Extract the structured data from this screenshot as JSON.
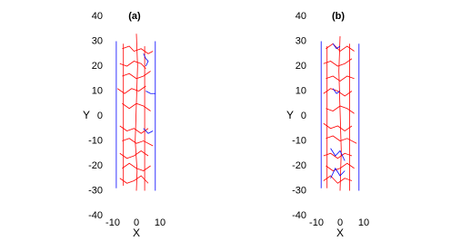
{
  "chart_data": [
    {
      "type": "line",
      "title": "(a)",
      "x_label": "X",
      "y_label": "Y",
      "xlim": [
        -10,
        10
      ],
      "ylim": [
        -40,
        40
      ],
      "xticks": [
        -10,
        0,
        10
      ],
      "yticks": [
        -40,
        -30,
        -20,
        -10,
        0,
        10,
        20,
        30,
        40
      ],
      "series": [
        {
          "color": "#0000ff",
          "x": [
            -8.5,
            -8.5
          ],
          "values": [
            -29,
            30
          ]
        },
        {
          "color": "#0000ff",
          "x": [
            8,
            8
          ],
          "values": [
            -30,
            30
          ]
        },
        {
          "color": "#ff0000",
          "x": [
            -5.5,
            -5.5
          ],
          "values": [
            -28,
            29
          ]
        },
        {
          "color": "#ff0000",
          "x": [
            3.5,
            3.5
          ],
          "values": [
            -30,
            28
          ]
        },
        {
          "color": "#ff0000",
          "x": [
            0,
            0.5,
            0,
            -0.5,
            0.3,
            0
          ],
          "values": [
            33,
            20,
            5,
            -10,
            -22,
            -30
          ]
        },
        {
          "color": "#ff0000",
          "x": [
            -6,
            -3,
            -1,
            2,
            5,
            7
          ],
          "values": [
            27,
            28,
            26,
            27,
            25,
            26
          ]
        },
        {
          "color": "#ff0000",
          "x": [
            -7,
            -4,
            -1,
            2,
            4
          ],
          "values": [
            21,
            20,
            22,
            21,
            19
          ]
        },
        {
          "color": "#ff0000",
          "x": [
            -6,
            -3,
            0,
            3,
            6
          ],
          "values": [
            16,
            17,
            15,
            16,
            18
          ]
        },
        {
          "color": "#ff0000",
          "x": [
            -8,
            -5,
            -2,
            1,
            4
          ],
          "values": [
            11,
            9,
            11,
            10,
            12
          ]
        },
        {
          "color": "#ff0000",
          "x": [
            -6,
            -3,
            0,
            3,
            6
          ],
          "values": [
            5,
            3,
            5,
            4,
            2
          ]
        },
        {
          "color": "#ff0000",
          "x": [
            -7,
            -4,
            -1,
            2,
            5
          ],
          "values": [
            -4,
            -6,
            -5,
            -7,
            -5
          ]
        },
        {
          "color": "#ff0000",
          "x": [
            -6,
            -3,
            0,
            3,
            7
          ],
          "values": [
            -10,
            -9,
            -11,
            -10,
            -12
          ]
        },
        {
          "color": "#ff0000",
          "x": [
            -7,
            -4,
            -1,
            2,
            5
          ],
          "values": [
            -15,
            -17,
            -16,
            -14,
            -16
          ]
        },
        {
          "color": "#ff0000",
          "x": [
            -6,
            -3,
            0,
            3,
            6
          ],
          "values": [
            -21,
            -19,
            -21,
            -22,
            -20
          ]
        },
        {
          "color": "#ff0000",
          "x": [
            -7,
            -4,
            -1,
            2,
            5
          ],
          "values": [
            -25,
            -27,
            -26,
            -24,
            -27
          ]
        },
        {
          "color": "#0000ff",
          "x": [
            3,
            4,
            5,
            4
          ],
          "values": [
            25,
            23,
            22,
            20
          ]
        },
        {
          "color": "#0000ff",
          "x": [
            4,
            6,
            8
          ],
          "values": [
            10,
            9,
            9
          ]
        },
        {
          "color": "#0000ff",
          "x": [
            3,
            5,
            7
          ],
          "values": [
            -5,
            -7,
            -6
          ]
        }
      ]
    },
    {
      "type": "line",
      "title": "(b)",
      "x_label": "X",
      "y_label": "Y",
      "xlim": [
        -10,
        10
      ],
      "ylim": [
        -40,
        40
      ],
      "xticks": [
        -10,
        0,
        10
      ],
      "yticks": [
        -40,
        -30,
        -20,
        -10,
        0,
        10,
        20,
        30,
        40
      ],
      "series": [
        {
          "color": "#0000ff",
          "x": [
            -8,
            -8
          ],
          "values": [
            -29,
            30
          ]
        },
        {
          "color": "#0000ff",
          "x": [
            8,
            8
          ],
          "values": [
            -30,
            29
          ]
        },
        {
          "color": "#ff0000",
          "x": [
            -5.5,
            -5.5
          ],
          "values": [
            -29,
            28
          ]
        },
        {
          "color": "#ff0000",
          "x": [
            4,
            4
          ],
          "values": [
            -30,
            29
          ]
        },
        {
          "color": "#ff0000",
          "x": [
            0,
            -0.5,
            0,
            0.5,
            0
          ],
          "values": [
            32,
            18,
            2,
            -14,
            -30
          ]
        },
        {
          "color": "#ff0000",
          "x": [
            -6,
            -3,
            0,
            3,
            6
          ],
          "values": [
            27,
            29,
            26,
            28,
            26
          ]
        },
        {
          "color": "#ff0000",
          "x": [
            -7,
            -4,
            -1,
            2,
            5
          ],
          "values": [
            21,
            22,
            20,
            21,
            23
          ]
        },
        {
          "color": "#ff0000",
          "x": [
            -6,
            -3,
            0,
            3,
            6
          ],
          "values": [
            15,
            16,
            14,
            16,
            15
          ]
        },
        {
          "color": "#ff0000",
          "x": [
            -7,
            -4,
            -1,
            2,
            5
          ],
          "values": [
            9,
            11,
            10,
            8,
            10
          ]
        },
        {
          "color": "#ff0000",
          "x": [
            -6,
            -3,
            0,
            3,
            6
          ],
          "values": [
            3,
            2,
            4,
            3,
            1
          ]
        },
        {
          "color": "#ff0000",
          "x": [
            -7,
            -4,
            -1,
            2,
            5
          ],
          "values": [
            -3,
            -5,
            -4,
            -6,
            -4
          ]
        },
        {
          "color": "#ff0000",
          "x": [
            -6,
            -3,
            0,
            3,
            7
          ],
          "values": [
            -9,
            -8,
            -10,
            -9,
            -11
          ]
        },
        {
          "color": "#ff0000",
          "x": [
            -7,
            -4,
            -1,
            2,
            5
          ],
          "values": [
            -16,
            -15,
            -17,
            -15,
            -16
          ]
        },
        {
          "color": "#ff0000",
          "x": [
            -6,
            -3,
            0,
            3,
            6
          ],
          "values": [
            -20,
            -22,
            -21,
            -19,
            -21
          ]
        },
        {
          "color": "#ff0000",
          "x": [
            -7,
            -4,
            -1,
            2,
            5
          ],
          "values": [
            -26,
            -24,
            -27,
            -25,
            -26
          ]
        },
        {
          "color": "#0000ff",
          "x": [
            -3,
            -1.5,
            0
          ],
          "values": [
            29,
            27,
            28
          ]
        },
        {
          "color": "#0000ff",
          "x": [
            -3,
            -1.5,
            0
          ],
          "values": [
            11,
            9,
            10
          ]
        },
        {
          "color": "#0000ff",
          "x": [
            -4,
            -2,
            0,
            2
          ],
          "values": [
            -13,
            -16,
            -14,
            -18
          ]
        },
        {
          "color": "#0000ff",
          "x": [
            -4,
            -2,
            0,
            2
          ],
          "values": [
            -25,
            -21,
            -24,
            -22
          ]
        }
      ]
    }
  ]
}
